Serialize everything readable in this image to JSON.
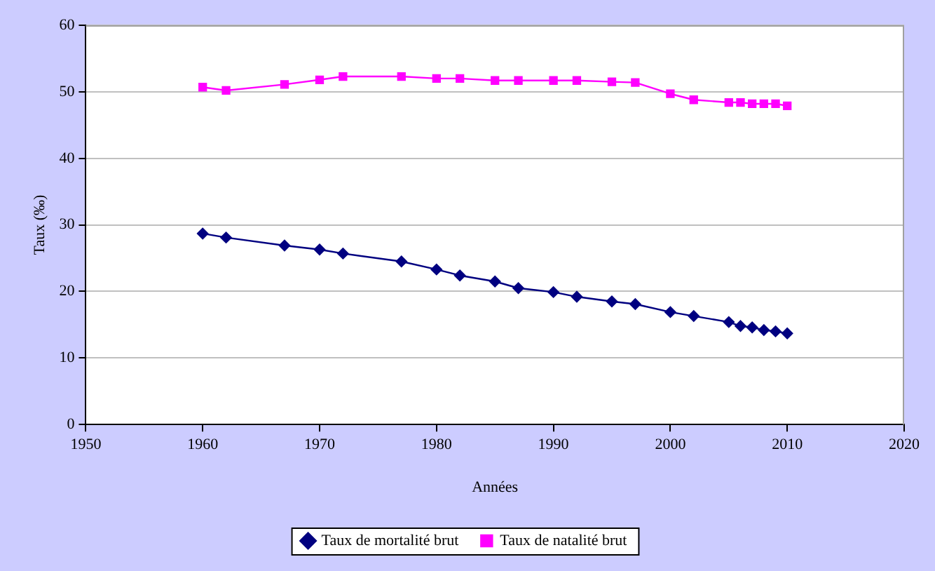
{
  "chart_data": {
    "type": "line",
    "xlabel": "Années",
    "ylabel": "Taux (‰)",
    "x": [
      1960,
      1962,
      1967,
      1970,
      1972,
      1977,
      1980,
      1982,
      1985,
      1987,
      1990,
      1992,
      1995,
      1997,
      2000,
      2002,
      2005,
      2006,
      2007,
      2008,
      2009,
      2010
    ],
    "series": [
      {
        "name": "Taux de mortalité brut",
        "color": "#000080",
        "marker": "diamond",
        "values": [
          28.7,
          28.1,
          26.9,
          26.3,
          25.7,
          24.5,
          23.3,
          22.4,
          21.5,
          20.5,
          19.9,
          19.2,
          18.5,
          18.1,
          16.9,
          16.3,
          15.4,
          14.8,
          14.6,
          14.2,
          14.0,
          13.7
        ]
      },
      {
        "name": "Taux de natalité brut",
        "color": "#ff00ff",
        "marker": "square",
        "values": [
          50.7,
          50.2,
          51.1,
          51.8,
          52.3,
          52.3,
          52.0,
          52.0,
          51.7,
          51.7,
          51.7,
          51.7,
          51.5,
          51.4,
          49.7,
          48.8,
          48.4,
          48.4,
          48.2,
          48.2,
          48.2,
          47.9
        ]
      }
    ],
    "xlim": [
      1950,
      2020
    ],
    "xticks": [
      1950,
      1960,
      1970,
      1980,
      1990,
      2000,
      2010,
      2020
    ],
    "ylim": [
      0,
      60
    ],
    "yticks": [
      0,
      10,
      20,
      30,
      40,
      50,
      60
    ],
    "grid": "y",
    "legend": "bottom",
    "line_style": "solid"
  }
}
